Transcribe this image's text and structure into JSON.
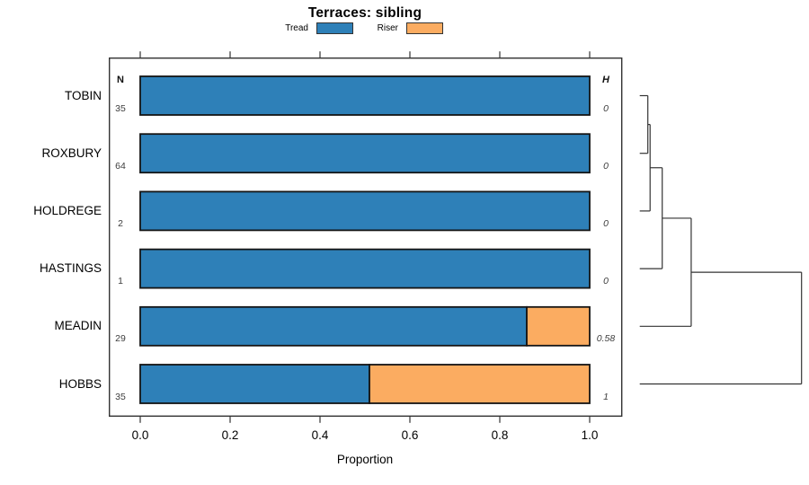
{
  "chart_data": {
    "type": "bar",
    "orientation": "horizontal-stacked",
    "title": "Terraces: sibling",
    "xlabel": "Proportion",
    "xlim": [
      0,
      1
    ],
    "x_ticks": [
      0.0,
      0.2,
      0.4,
      0.6,
      0.8,
      1.0
    ],
    "x_tick_labels": [
      "0.0",
      "0.2",
      "0.4",
      "0.6",
      "0.8",
      "1.0"
    ],
    "grid": false,
    "legend_position": "top-center",
    "categories": [
      "TOBIN",
      "ROXBURY",
      "HOLDREGE",
      "HASTINGS",
      "MEADIN",
      "HOBBS"
    ],
    "series": [
      {
        "name": "Tread",
        "color": "#2E80B8",
        "values": [
          1.0,
          1.0,
          1.0,
          1.0,
          0.86,
          0.51
        ]
      },
      {
        "name": "Riser",
        "color": "#FBAC61",
        "values": [
          0.0,
          0.0,
          0.0,
          0.0,
          0.14,
          0.49
        ]
      }
    ],
    "n_header": "N",
    "n_values": [
      "35",
      "64",
      "2",
      "1",
      "29",
      "35"
    ],
    "h_header": "H",
    "h_values": [
      "0",
      "0",
      "0",
      "0",
      "0.58",
      "1"
    ],
    "dendrogram": {
      "position": "right",
      "leaf_order": [
        "TOBIN",
        "ROXBURY",
        "HOLDREGE",
        "HASTINGS",
        "MEADIN",
        "HOBBS"
      ],
      "merges": [
        {
          "a": "TOBIN",
          "b": "ROXBURY",
          "height": 0.05
        },
        {
          "a": "prev",
          "b": "HOLDREGE",
          "height": 0.064
        },
        {
          "a": "prev",
          "b": "HASTINGS",
          "height": 0.139
        },
        {
          "a": "prev",
          "b": "MEADIN",
          "height": 0.318
        },
        {
          "a": "prev",
          "b": "HOBBS",
          "height": 1.0
        }
      ]
    }
  }
}
